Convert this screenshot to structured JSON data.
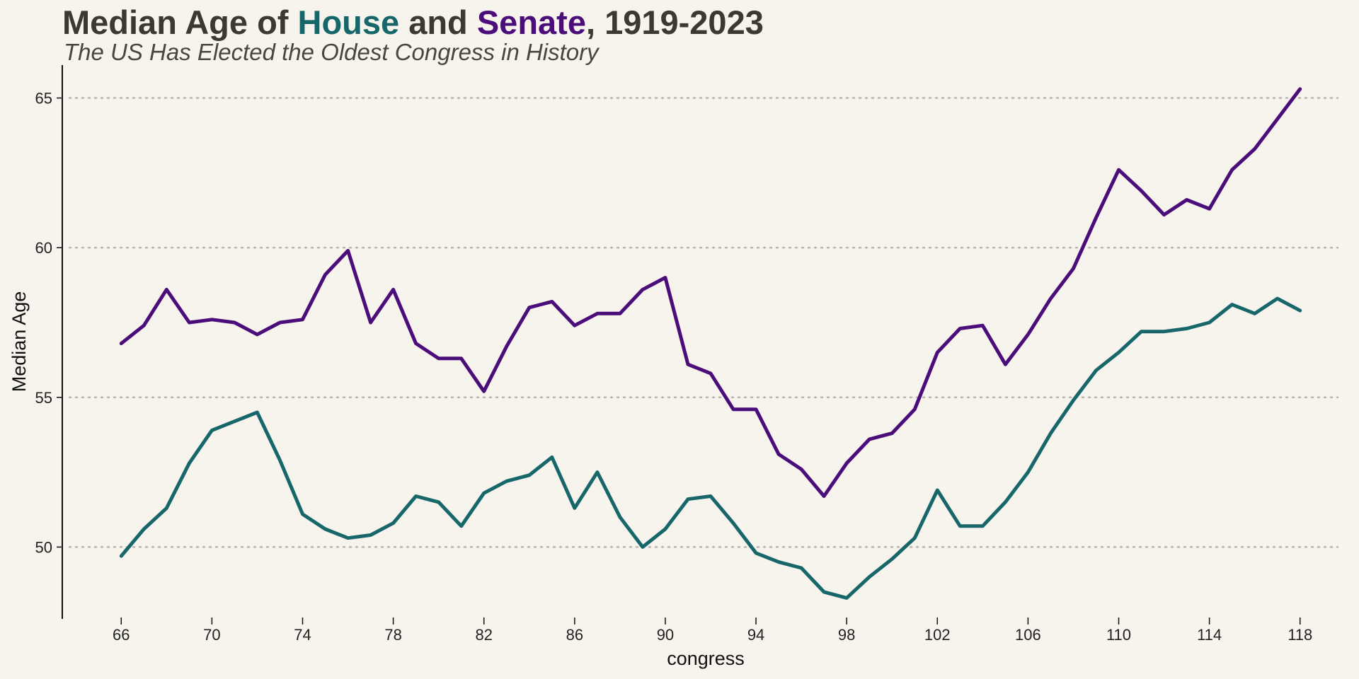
{
  "chart_data": {
    "type": "line",
    "title_parts": [
      {
        "text": "Median Age of ",
        "color": "#3d3830"
      },
      {
        "text": "House",
        "color": "#17676a"
      },
      {
        "text": " and ",
        "color": "#3d3830"
      },
      {
        "text": "Senate",
        "color": "#4b0d7a"
      },
      {
        "text": ", 1919-2023",
        "color": "#3d3830"
      }
    ],
    "subtitle": "The US Has Elected the Oldest Congress in History",
    "xlabel": "congress",
    "ylabel": "Median Age",
    "xlim": [
      63.4,
      120.6
    ],
    "ylim": [
      47.6,
      66.1
    ],
    "xticks": [
      "66",
      "70",
      "74",
      "78",
      "82",
      "86",
      "90",
      "94",
      "98",
      "102",
      "106",
      "110",
      "114",
      "118"
    ],
    "yticks": [
      "50",
      "55",
      "60",
      "65"
    ],
    "grid": "horizontal dotted",
    "x": [
      66,
      67,
      68,
      69,
      70,
      71,
      72,
      73,
      74,
      75,
      76,
      77,
      78,
      79,
      80,
      81,
      82,
      83,
      84,
      85,
      86,
      87,
      88,
      89,
      90,
      91,
      92,
      93,
      94,
      95,
      96,
      97,
      98,
      99,
      100,
      101,
      102,
      103,
      104,
      105,
      106,
      107,
      108,
      109,
      110,
      111,
      112,
      113,
      114,
      115,
      116,
      117,
      118
    ],
    "series": [
      {
        "name": "House",
        "color": "#17676a",
        "values": [
          49.7,
          50.6,
          51.3,
          52.8,
          53.9,
          54.2,
          54.5,
          52.9,
          51.1,
          50.6,
          50.3,
          50.4,
          50.8,
          51.7,
          51.5,
          50.7,
          51.8,
          52.2,
          52.4,
          53.0,
          51.3,
          52.5,
          51.0,
          50.0,
          50.6,
          51.6,
          51.7,
          50.8,
          49.8,
          49.5,
          49.3,
          48.5,
          48.3,
          49.0,
          49.6,
          50.3,
          51.9,
          50.7,
          50.7,
          51.5,
          52.5,
          53.8,
          54.9,
          55.9,
          56.5,
          57.2,
          57.2,
          57.3,
          57.5,
          58.1,
          57.8,
          58.3,
          57.9
        ]
      },
      {
        "name": "Senate",
        "color": "#4b0d7a",
        "values": [
          56.8,
          57.4,
          58.6,
          57.5,
          57.6,
          57.5,
          57.1,
          57.5,
          57.6,
          59.1,
          59.9,
          57.5,
          58.6,
          56.8,
          56.3,
          56.3,
          55.2,
          56.7,
          58.0,
          58.2,
          57.4,
          57.8,
          57.8,
          58.6,
          59.0,
          56.1,
          55.8,
          54.6,
          54.6,
          53.1,
          52.6,
          51.7,
          52.8,
          53.6,
          53.8,
          54.6,
          56.5,
          57.3,
          57.4,
          56.1,
          57.1,
          58.3,
          59.3,
          61.0,
          62.6,
          61.9,
          61.1,
          61.6,
          61.3,
          62.6,
          63.3,
          64.3,
          65.3
        ]
      }
    ]
  }
}
